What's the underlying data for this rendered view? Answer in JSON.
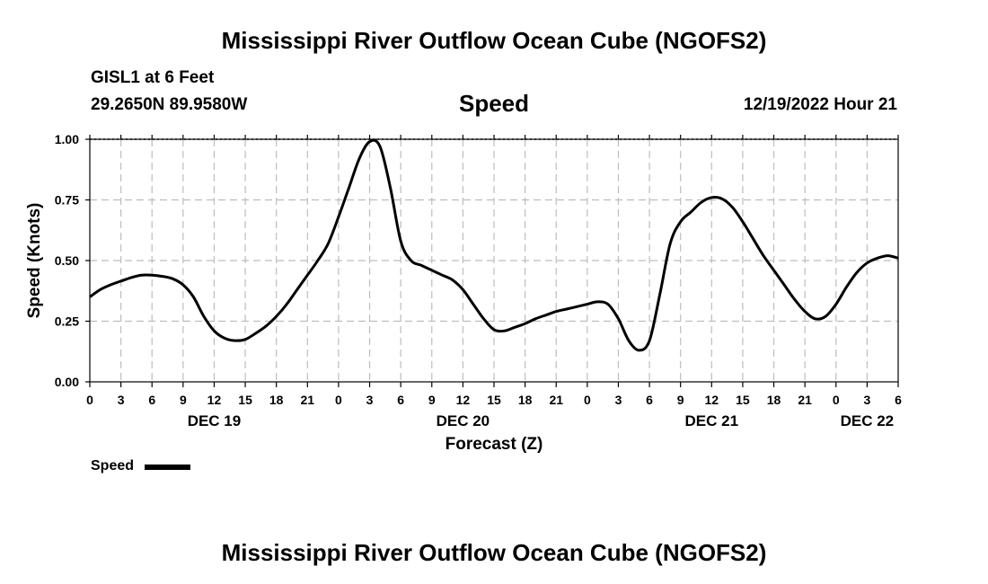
{
  "header": {
    "title": "Mississippi River Outflow Ocean Cube (NGOFS2)",
    "station": "GISL1 at 6 Feet",
    "coords": "29.2650N  89.9580W",
    "variable": "Speed",
    "datetime": "12/19/2022 Hour 21"
  },
  "legend": {
    "label": "Speed"
  },
  "footer": {
    "title": "Mississippi River Outflow Ocean Cube (NGOFS2)"
  },
  "chart_data": {
    "type": "line",
    "title": "Speed",
    "xlabel": "Forecast (Z)",
    "ylabel": "Speed (Knots)",
    "xlim": [
      0,
      78
    ],
    "ylim": [
      0,
      1.0
    ],
    "yticks": [
      0.0,
      0.25,
      0.5,
      0.75,
      1.0
    ],
    "ytick_labels": [
      "0.00",
      "0.25",
      "0.50",
      "0.75",
      "1.00"
    ],
    "xtick_labels": [
      "0",
      "3",
      "6",
      "9",
      "12",
      "15",
      "18",
      "21",
      "0",
      "3",
      "6",
      "9",
      "12",
      "15",
      "18",
      "21",
      "0",
      "3",
      "6",
      "9",
      "12",
      "15",
      "18",
      "21",
      "0",
      "3",
      "6"
    ],
    "date_labels": [
      {
        "label": "DEC 19",
        "at_hour": 12
      },
      {
        "label": "DEC 20",
        "at_hour": 36
      },
      {
        "label": "DEC 21",
        "at_hour": 60
      },
      {
        "label": "DEC 22",
        "at_hour": 75
      }
    ],
    "grid": true,
    "series": [
      {
        "name": "Speed",
        "x": [
          0,
          1,
          2,
          3,
          4,
          5,
          6,
          7,
          8,
          9,
          10,
          11,
          12,
          13,
          14,
          15,
          16,
          17,
          18,
          19,
          20,
          21,
          22,
          23,
          24,
          25,
          26,
          27,
          28,
          29,
          30,
          31,
          32,
          33,
          34,
          35,
          36,
          37,
          38,
          39,
          40,
          41,
          42,
          43,
          44,
          45,
          46,
          47,
          48,
          49,
          50,
          51,
          52,
          53,
          54,
          55,
          56,
          57,
          58,
          59,
          60,
          61,
          62,
          63,
          64,
          65,
          66,
          67,
          68,
          69,
          70,
          71,
          72,
          73,
          74,
          75,
          76,
          77,
          78
        ],
        "values": [
          0.35,
          0.38,
          0.4,
          0.415,
          0.43,
          0.44,
          0.44,
          0.435,
          0.425,
          0.4,
          0.35,
          0.27,
          0.21,
          0.18,
          0.17,
          0.175,
          0.2,
          0.23,
          0.27,
          0.32,
          0.38,
          0.44,
          0.5,
          0.57,
          0.68,
          0.8,
          0.92,
          0.99,
          0.97,
          0.8,
          0.58,
          0.5,
          0.48,
          0.46,
          0.44,
          0.42,
          0.38,
          0.32,
          0.26,
          0.215,
          0.21,
          0.225,
          0.24,
          0.26,
          0.275,
          0.29,
          0.3,
          0.31,
          0.32,
          0.33,
          0.32,
          0.26,
          0.17,
          0.13,
          0.17,
          0.36,
          0.57,
          0.66,
          0.7,
          0.74,
          0.76,
          0.755,
          0.72,
          0.66,
          0.59,
          0.52,
          0.46,
          0.4,
          0.34,
          0.29,
          0.26,
          0.27,
          0.32,
          0.39,
          0.45,
          0.49,
          0.51,
          0.52,
          0.51
        ]
      }
    ]
  }
}
